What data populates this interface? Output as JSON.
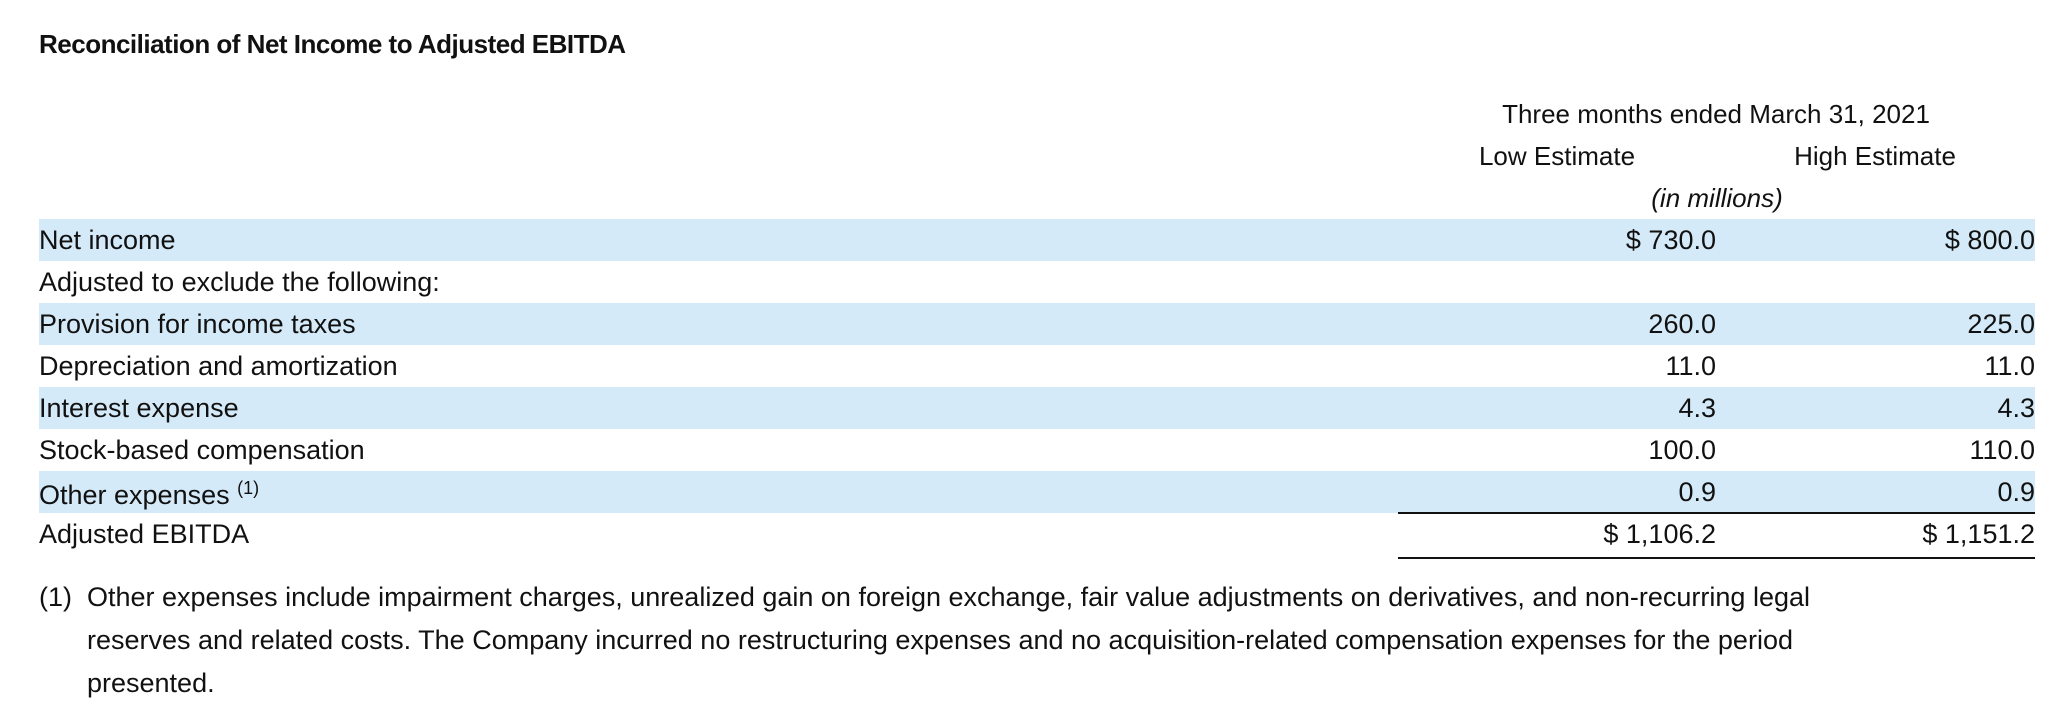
{
  "title": "Reconciliation of Net Income to Adjusted EBITDA",
  "table": {
    "period": "Three months ended March 31, 2021",
    "columns": [
      "Low Estimate",
      "High Estimate"
    ],
    "units": "(in millions)",
    "rows": [
      {
        "label": "Net income",
        "values": [
          "$ 730.0",
          "$ 800.0"
        ]
      },
      {
        "label": "Adjusted to exclude the following:",
        "values": []
      },
      {
        "label": "Provision for income taxes",
        "values": [
          "260.0",
          "225.0"
        ]
      },
      {
        "label": "Depreciation and amortization",
        "values": [
          "11.0",
          "11.0"
        ]
      },
      {
        "label": "Interest expense",
        "values": [
          "4.3",
          "4.3"
        ]
      },
      {
        "label": "Stock-based compensation",
        "values": [
          "100.0",
          "110.0"
        ]
      },
      {
        "label": "Other expenses",
        "note": "(1)",
        "values": [
          "0.9",
          "0.9"
        ]
      },
      {
        "label": "Adjusted EBITDA",
        "values": [
          "$ 1,106.2",
          "$ 1,151.2"
        ]
      }
    ]
  },
  "footnote": {
    "marker": "(1)",
    "lines": [
      "Other expenses include impairment charges, unrealized gain on foreign exchange, fair value adjustments on derivatives, and non-recurring legal",
      "reserves and related costs. The Company incurred no restructuring expenses and no acquisition-related compensation expenses for the period",
      "presented."
    ]
  }
}
